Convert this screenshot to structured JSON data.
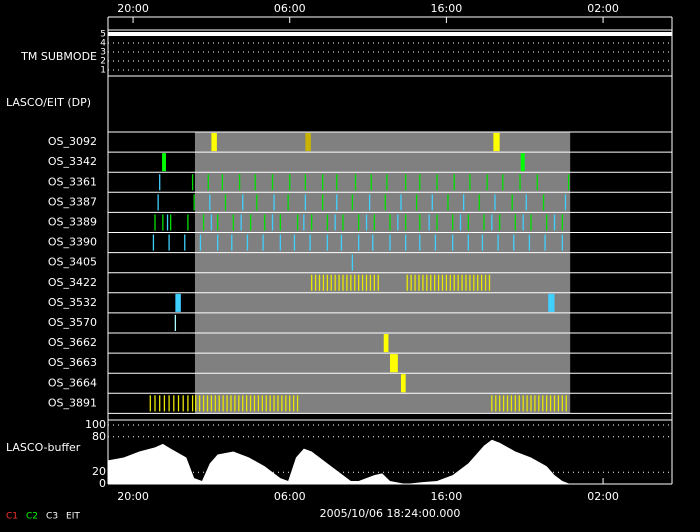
{
  "chart_data": {
    "type": "timeline",
    "xlim": [
      0,
      36
    ],
    "xticks": [
      {
        "value": 1.6,
        "label": "20:00"
      },
      {
        "value": 11.6,
        "label": "06:00"
      },
      {
        "value": 21.6,
        "label": "16:00"
      },
      {
        "value": 31.6,
        "label": "02:00"
      }
    ],
    "start_label": "2005/10/06 18:24:00.000",
    "submode": {
      "label": "TM SUBMODE",
      "ylim": [
        1,
        5
      ],
      "yticks": [
        1,
        2,
        3,
        4,
        5
      ],
      "x": [
        0,
        36
      ],
      "values": [
        5,
        5
      ],
      "color": "#ffffff"
    },
    "section_label": "LASCO/EIT (DP)",
    "active_span": [
      5.55,
      29.5
    ],
    "active_color": "#808080",
    "rows": [
      {
        "name": "OS_3092",
        "marks": [
          {
            "color": "#ffff00",
            "x": [
              6.6,
              24.6
            ],
            "w": [
              0.35,
              0.4
            ]
          },
          {
            "color": "#c8b400",
            "x": [
              12.6
            ],
            "w": [
              0.35
            ]
          }
        ]
      },
      {
        "name": "OS_3342",
        "marks": [
          {
            "color": "#00ff00",
            "x": [
              3.45,
              26.35
            ],
            "w": [
              0.25,
              0.25
            ]
          }
        ]
      },
      {
        "name": "OS_3361",
        "marks": [
          {
            "color": "#00e000",
            "x": [
              5.4,
              6.4,
              7.3,
              8.4,
              9.4,
              10.5,
              11.6,
              12.6,
              13.7,
              14.6,
              15.8,
              16.8,
              17.8,
              19.0,
              19.9,
              21.0,
              22.1,
              23.1,
              24.2,
              25.2,
              26.3,
              27.4,
              29.4
            ]
          },
          {
            "color": "#40d0ff",
            "x": [
              3.3
            ]
          }
        ]
      },
      {
        "name": "OS_3387",
        "marks": [
          {
            "color": "#40d0ff",
            "x": [
              3.2,
              6.5,
              8.6,
              10.6,
              12.6,
              14.6,
              16.7,
              18.7,
              20.7,
              22.7,
              24.7,
              26.7,
              29.2
            ]
          },
          {
            "color": "#00e000",
            "x": [
              5.5,
              7.5,
              9.5,
              11.5,
              13.7,
              15.6,
              17.7,
              19.7,
              21.7,
              23.7,
              25.8,
              27.8
            ]
          }
        ]
      },
      {
        "name": "OS_3389",
        "marks": [
          {
            "color": "#00e000",
            "x": [
              3.0,
              3.5,
              4.0,
              5.1,
              6.1,
              7.0,
              8.0,
              9.1,
              10.0,
              11.0,
              12.1,
              13.0,
              14.0,
              15.0,
              16.0,
              17.0,
              18.0,
              19.0,
              19.9,
              21.0,
              22.0,
              23.0,
              24.0,
              25.0,
              26.0,
              27.0,
              28.0,
              29.0
            ]
          },
          {
            "color": "#40d0ff",
            "x": [
              3.8,
              6.6,
              8.5,
              10.5,
              12.5,
              14.5,
              16.5,
              18.5,
              20.5,
              22.5,
              24.5,
              26.5,
              28.5
            ]
          }
        ]
      },
      {
        "name": "OS_3390",
        "marks": [
          {
            "color": "#40d0ff",
            "x": [
              2.9,
              3.9,
              4.9,
              5.9,
              7.0,
              7.9,
              8.9,
              9.9,
              11.0,
              11.9,
              12.9,
              14.0,
              14.9,
              16.0,
              16.9,
              18.0,
              19.0,
              19.9,
              20.9,
              22.0,
              23.0,
              23.9,
              24.9,
              25.9,
              26.9,
              27.9,
              29.0
            ]
          }
        ]
      },
      {
        "name": "OS_3405",
        "marks": [
          {
            "color": "#40d0ff",
            "x": [
              15.6
            ]
          }
        ]
      },
      {
        "name": "OS_3422",
        "marks": [
          {
            "color": "#e8e800",
            "x": [
              13.0,
              13.25,
              13.5,
              13.75,
              14.0,
              14.25,
              14.5,
              14.75,
              15.0,
              15.25,
              15.5,
              15.75,
              16.0,
              16.25,
              16.5,
              16.75,
              17.0,
              17.25,
              19.1,
              19.35,
              19.6,
              19.85,
              20.1,
              20.35,
              20.6,
              20.85,
              21.1,
              21.35,
              21.6,
              21.85,
              22.1,
              22.35,
              22.6,
              22.85,
              23.1,
              23.35,
              23.6,
              23.85,
              24.1,
              24.35
            ]
          }
        ]
      },
      {
        "name": "OS_3532",
        "marks": [
          {
            "color": "#40d0ff",
            "x": [
              4.3,
              28.1
            ],
            "w": [
              0.35,
              0.4
            ]
          }
        ]
      },
      {
        "name": "OS_3570",
        "marks": [
          {
            "color": "#b0ffff",
            "x": [
              4.3
            ]
          }
        ]
      },
      {
        "name": "OS_3662",
        "marks": [
          {
            "color": "#ffff00",
            "x": [
              17.6
            ],
            "w": [
              0.3
            ]
          }
        ]
      },
      {
        "name": "OS_3663",
        "marks": [
          {
            "color": "#ffff00",
            "x": [
              18.0
            ],
            "w": [
              0.5
            ]
          }
        ]
      },
      {
        "name": "OS_3664",
        "marks": [
          {
            "color": "#ffff00",
            "x": [
              18.7
            ],
            "w": [
              0.3
            ]
          }
        ]
      },
      {
        "name": "OS_3891",
        "marks": [
          {
            "color": "#e8e800",
            "x": [
              2.7,
              3.0,
              3.3,
              3.6,
              3.9,
              4.2,
              4.5,
              4.8,
              5.1,
              5.4,
              5.6,
              5.85,
              6.1,
              6.35,
              6.6,
              6.85,
              7.1,
              7.35,
              7.6,
              7.85,
              8.1,
              8.35,
              8.6,
              8.85,
              9.1,
              9.35,
              9.6,
              9.85,
              10.1,
              10.35,
              10.6,
              10.85,
              11.1,
              11.35,
              11.6,
              11.85,
              12.1,
              24.5,
              24.75,
              25.0,
              25.25,
              25.5,
              25.75,
              26.0,
              26.25,
              26.5,
              26.75,
              27.0,
              27.25,
              27.5,
              27.75,
              28.0,
              28.25,
              28.5,
              28.75,
              29.0,
              29.25
            ]
          }
        ]
      }
    ],
    "buffer": {
      "label": "LASCO-buffer",
      "ylim": [
        0,
        100
      ],
      "yticks": [
        0,
        20,
        80,
        100
      ],
      "color": "#ffffff",
      "x": [
        0,
        1,
        2,
        3,
        3.5,
        4,
        5,
        5.5,
        6,
        6.5,
        7,
        8,
        9,
        10,
        11,
        11.5,
        12,
        12.5,
        13,
        14,
        15,
        15.5,
        16,
        17,
        17.5,
        18,
        19,
        20,
        21,
        22,
        23,
        24,
        24.5,
        25,
        26,
        27,
        28,
        28.5,
        29,
        29.5,
        36
      ],
      "values": [
        40,
        45,
        55,
        62,
        68,
        60,
        45,
        10,
        5,
        35,
        50,
        55,
        45,
        30,
        10,
        5,
        45,
        60,
        55,
        35,
        15,
        5,
        5,
        15,
        18,
        5,
        0,
        3,
        5,
        15,
        35,
        65,
        75,
        70,
        55,
        45,
        30,
        15,
        5,
        0,
        0
      ]
    },
    "legend": [
      {
        "name": "C1",
        "color": "#ff3030"
      },
      {
        "name": "C2",
        "color": "#00ff00"
      },
      {
        "name": "C3",
        "color": "#ffffff"
      },
      {
        "name": "EIT",
        "color": "#ffffff"
      }
    ]
  }
}
